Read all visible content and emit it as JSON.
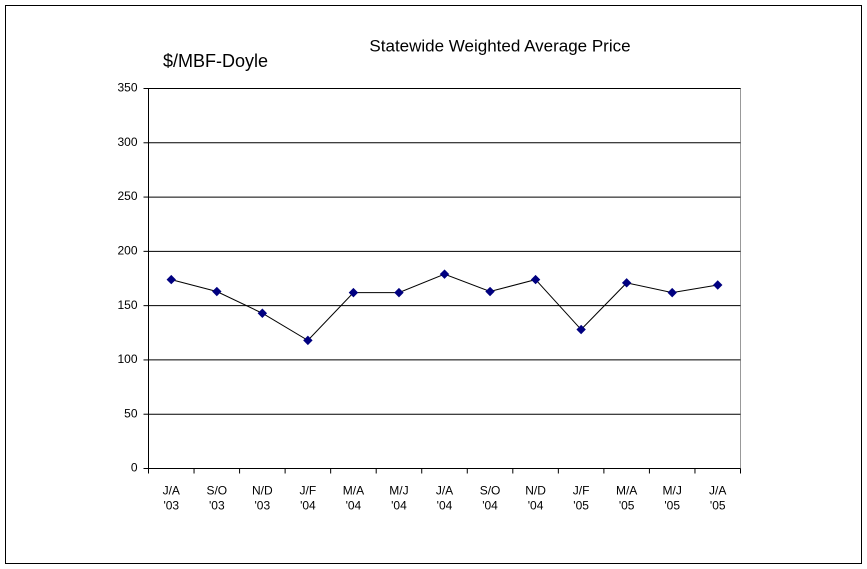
{
  "chart_data": {
    "type": "line",
    "title": "Statewide Weighted Average Price",
    "y_label": "$/MBF-Doyle",
    "categories": [
      [
        "J/A",
        "'03"
      ],
      [
        "S/O",
        "'03"
      ],
      [
        "N/D",
        "'03"
      ],
      [
        "J/F",
        "'04"
      ],
      [
        "M/A",
        "'04"
      ],
      [
        "M/J",
        "'04"
      ],
      [
        "J/A",
        "'04"
      ],
      [
        "S/O",
        "'04"
      ],
      [
        "N/D",
        "'04"
      ],
      [
        "J/F",
        "'05"
      ],
      [
        "M/A",
        "'05"
      ],
      [
        "M/J",
        "'05"
      ],
      [
        "J/A",
        "'05"
      ]
    ],
    "values": [
      174,
      163,
      143,
      118,
      162,
      162,
      179,
      163,
      174,
      128,
      171,
      162,
      169
    ],
    "color": "#000080",
    "line_color": "#000000",
    "ylim": [
      0,
      350
    ],
    "yticks": [
      0,
      50,
      100,
      150,
      200,
      250,
      300,
      350
    ],
    "grid": true
  }
}
